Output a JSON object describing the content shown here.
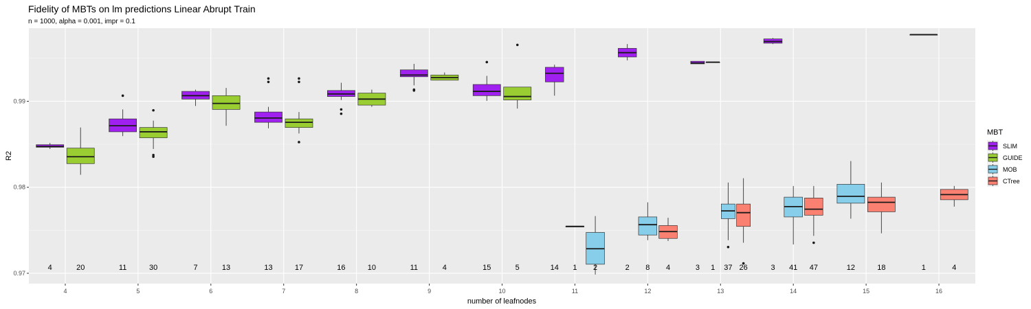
{
  "chart_data": {
    "type": "boxplot",
    "title": "Fidelity of MBTs on lm predictions Linear Abrupt Train",
    "subtitle": "n = 1000, alpha = 0.001, impr = 0.1",
    "xlabel": "number of leafnodes",
    "ylabel": "R2",
    "ylim": [
      0.9688,
      0.9985
    ],
    "y_ticks": [
      0.97,
      0.98,
      0.99
    ],
    "y_tick_labels": [
      "0.97",
      "0.98",
      "0.99"
    ],
    "categories": [
      "4",
      "5",
      "6",
      "7",
      "8",
      "9",
      "10",
      "11",
      "12",
      "13",
      "14",
      "15",
      "16"
    ],
    "grid": true,
    "legend": {
      "title": "MBT",
      "position": "right",
      "entries": [
        {
          "name": "SLIM",
          "color": "#a020f0"
        },
        {
          "name": "GUIDE",
          "color": "#9acd32"
        },
        {
          "name": "MOB",
          "color": "#87ceeb"
        },
        {
          "name": "CTree",
          "color": "#fa8072"
        }
      ]
    },
    "series": [
      {
        "name": "SLIM",
        "color": "#a020f0",
        "boxes": [
          {
            "x": "4",
            "q1": 0.98465,
            "median": 0.98475,
            "q3": 0.98495,
            "lower": 0.98445,
            "upper": 0.98515,
            "outliers": [],
            "n": "4"
          },
          {
            "x": "5",
            "q1": 0.98645,
            "median": 0.98715,
            "q3": 0.98795,
            "lower": 0.98595,
            "upper": 0.98905,
            "outliers": [
              0.99065
            ],
            "n": "11"
          },
          {
            "x": "6",
            "q1": 0.99025,
            "median": 0.99065,
            "q3": 0.99115,
            "lower": 0.98945,
            "upper": 0.99135,
            "outliers": [],
            "n": "7"
          },
          {
            "x": "7",
            "q1": 0.98755,
            "median": 0.98805,
            "q3": 0.98875,
            "lower": 0.98685,
            "upper": 0.98935,
            "outliers": [
              0.99225,
              0.99265
            ],
            "n": "13"
          },
          {
            "x": "8",
            "q1": 0.99055,
            "median": 0.99085,
            "q3": 0.99125,
            "lower": 0.99015,
            "upper": 0.99215,
            "outliers": [
              0.98855,
              0.98905
            ],
            "n": "16"
          },
          {
            "x": "9",
            "q1": 0.99285,
            "median": 0.99305,
            "q3": 0.99365,
            "lower": 0.99185,
            "upper": 0.99435,
            "outliers": [
              0.99125,
              0.99135
            ],
            "n": "11"
          },
          {
            "x": "10",
            "q1": 0.99065,
            "median": 0.99115,
            "q3": 0.99195,
            "lower": 0.99005,
            "upper": 0.99295,
            "outliers": [
              0.99455
            ],
            "n": "15"
          },
          {
            "x": "11",
            "q1": 0.99225,
            "median": 0.99325,
            "q3": 0.99395,
            "lower": 0.99065,
            "upper": 0.99425,
            "outliers": [],
            "n": "14"
          },
          {
            "x": "12",
            "q1": 0.99515,
            "median": 0.99565,
            "q3": 0.99615,
            "lower": 0.99475,
            "upper": 0.99665,
            "outliers": [],
            "n": "2"
          },
          {
            "x": "13",
            "q1": 0.99435,
            "median": 0.99445,
            "q3": 0.99465,
            "lower": 0.99435,
            "upper": 0.99465,
            "outliers": [],
            "n": "3"
          },
          {
            "x": "14",
            "q1": 0.99675,
            "median": 0.99695,
            "q3": 0.99725,
            "lower": 0.99665,
            "upper": 0.99735,
            "outliers": [],
            "n": "3"
          },
          {
            "x": "16",
            "q1": 0.99775,
            "median": 0.99775,
            "q3": 0.99775,
            "lower": 0.99775,
            "upper": 0.99775,
            "outliers": [],
            "n": "1"
          }
        ]
      },
      {
        "name": "GUIDE",
        "color": "#9acd32",
        "boxes": [
          {
            "x": "4",
            "q1": 0.98275,
            "median": 0.98355,
            "q3": 0.98455,
            "lower": 0.98145,
            "upper": 0.98695,
            "outliers": [],
            "n": "20"
          },
          {
            "x": "5",
            "q1": 0.98575,
            "median": 0.98645,
            "q3": 0.98695,
            "lower": 0.98445,
            "upper": 0.98775,
            "outliers": [
              0.98895,
              0.98355,
              0.98375
            ],
            "n": "30"
          },
          {
            "x": "6",
            "q1": 0.98905,
            "median": 0.98975,
            "q3": 0.99065,
            "lower": 0.98715,
            "upper": 0.99155,
            "outliers": [],
            "n": "13"
          },
          {
            "x": "7",
            "q1": 0.98695,
            "median": 0.98755,
            "q3": 0.98795,
            "lower": 0.98625,
            "upper": 0.98875,
            "outliers": [
              0.98525,
              0.99225,
              0.99265
            ],
            "n": "17"
          },
          {
            "x": "8",
            "q1": 0.98955,
            "median": 0.99025,
            "q3": 0.99095,
            "lower": 0.98935,
            "upper": 0.99135,
            "outliers": [],
            "n": "10"
          },
          {
            "x": "9",
            "q1": 0.99245,
            "median": 0.99275,
            "q3": 0.99305,
            "lower": 0.99245,
            "upper": 0.99335,
            "outliers": [],
            "n": "4"
          },
          {
            "x": "10",
            "q1": 0.99015,
            "median": 0.99055,
            "q3": 0.99165,
            "lower": 0.98915,
            "upper": 0.99165,
            "outliers": [
              0.99655
            ],
            "n": "5"
          },
          {
            "x": "11",
            "q1": 0.97545,
            "median": 0.97545,
            "q3": 0.97545,
            "lower": 0.97545,
            "upper": 0.97545,
            "outliers": [],
            "n": "1"
          },
          {
            "x": "13",
            "q1": 0.99455,
            "median": 0.99455,
            "q3": 0.99455,
            "lower": 0.99455,
            "upper": 0.99455,
            "outliers": [],
            "n": "1"
          }
        ]
      },
      {
        "name": "MOB",
        "color": "#87ceeb",
        "boxes": [
          {
            "x": "11",
            "q1": 0.97105,
            "median": 0.97285,
            "q3": 0.97475,
            "lower": 0.96985,
            "upper": 0.97665,
            "outliers": [],
            "n": "2"
          },
          {
            "x": "12",
            "q1": 0.97445,
            "median": 0.97565,
            "q3": 0.97655,
            "lower": 0.97385,
            "upper": 0.97825,
            "outliers": [],
            "n": "8"
          },
          {
            "x": "13",
            "q1": 0.97635,
            "median": 0.97725,
            "q3": 0.97805,
            "lower": 0.97385,
            "upper": 0.98055,
            "outliers": [
              0.97305
            ],
            "n": "37"
          },
          {
            "x": "14",
            "q1": 0.97655,
            "median": 0.97775,
            "q3": 0.97885,
            "lower": 0.97335,
            "upper": 0.98015,
            "outliers": [],
            "n": "41"
          },
          {
            "x": "15",
            "q1": 0.97815,
            "median": 0.97895,
            "q3": 0.98035,
            "lower": 0.97635,
            "upper": 0.98305,
            "outliers": [],
            "n": "12"
          }
        ]
      },
      {
        "name": "CTree",
        "color": "#fa8072",
        "boxes": [
          {
            "x": "12",
            "q1": 0.97405,
            "median": 0.97485,
            "q3": 0.97555,
            "lower": 0.97375,
            "upper": 0.97645,
            "outliers": [],
            "n": "4"
          },
          {
            "x": "13",
            "q1": 0.97545,
            "median": 0.97705,
            "q3": 0.97805,
            "lower": 0.97355,
            "upper": 0.98105,
            "outliers": [
              0.97115
            ],
            "n": "26"
          },
          {
            "x": "14",
            "q1": 0.97675,
            "median": 0.97745,
            "q3": 0.97875,
            "lower": 0.97435,
            "upper": 0.98015,
            "outliers": [
              0.97355
            ],
            "n": "47"
          },
          {
            "x": "15",
            "q1": 0.97715,
            "median": 0.97825,
            "q3": 0.97885,
            "lower": 0.97465,
            "upper": 0.98055,
            "outliers": [],
            "n": "18"
          },
          {
            "x": "16",
            "q1": 0.97855,
            "median": 0.97915,
            "q3": 0.97975,
            "lower": 0.97775,
            "upper": 0.98015,
            "outliers": [],
            "n": "4"
          }
        ]
      }
    ]
  }
}
